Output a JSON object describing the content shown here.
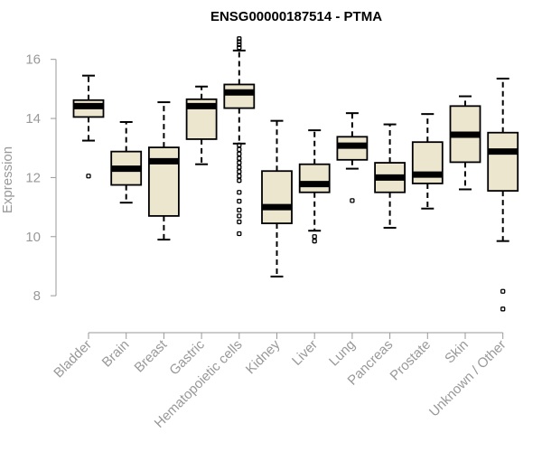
{
  "chart_data": {
    "type": "boxplot",
    "title": "ENSG00000187514 - PTMA",
    "xlabel": "",
    "ylabel": "Expression",
    "ylim": [
      7.3,
      17.0
    ],
    "yticks": [
      8,
      10,
      12,
      14,
      16
    ],
    "box_fill": "#ede6cf",
    "categories": [
      "Bladder",
      "Brain",
      "Breast",
      "Gastric",
      "Hematopoietic cells",
      "Kidney",
      "Liver",
      "Lung",
      "Pancreas",
      "Prostate",
      "Skin",
      "Unknown / Other"
    ],
    "boxes": [
      {
        "name": "Bladder",
        "min": 13.25,
        "q1": 14.05,
        "median": 14.42,
        "q3": 14.62,
        "max": 15.45,
        "outliers": [
          12.05
        ]
      },
      {
        "name": "Brain",
        "min": 11.15,
        "q1": 11.75,
        "median": 12.3,
        "q3": 12.88,
        "max": 13.88,
        "outliers": []
      },
      {
        "name": "Breast",
        "min": 9.9,
        "q1": 10.7,
        "median": 12.55,
        "q3": 13.02,
        "max": 14.55,
        "outliers": []
      },
      {
        "name": "Gastric",
        "min": 12.45,
        "q1": 13.3,
        "median": 14.42,
        "q3": 14.65,
        "max": 15.08,
        "outliers": []
      },
      {
        "name": "Hematopoietic cells",
        "min": 13.15,
        "q1": 14.35,
        "median": 14.88,
        "q3": 15.15,
        "max": 16.3,
        "outliers": [
          16.4,
          16.5,
          16.6,
          16.7,
          13.1,
          12.95,
          12.8,
          12.65,
          12.5,
          12.35,
          12.2,
          12.05,
          11.9,
          11.5,
          11.2,
          10.9,
          10.7,
          10.5,
          10.1
        ]
      },
      {
        "name": "Kidney",
        "min": 8.65,
        "q1": 10.45,
        "median": 11.0,
        "q3": 12.22,
        "max": 13.92,
        "outliers": []
      },
      {
        "name": "Liver",
        "min": 10.2,
        "q1": 11.5,
        "median": 11.78,
        "q3": 12.45,
        "max": 13.6,
        "outliers": [
          10.0,
          9.85
        ]
      },
      {
        "name": "Lung",
        "min": 12.3,
        "q1": 12.6,
        "median": 13.08,
        "q3": 13.38,
        "max": 14.18,
        "outliers": [
          11.22
        ]
      },
      {
        "name": "Pancreas",
        "min": 10.3,
        "q1": 11.5,
        "median": 12.0,
        "q3": 12.5,
        "max": 13.8,
        "outliers": []
      },
      {
        "name": "Prostate",
        "min": 10.95,
        "q1": 11.8,
        "median": 12.1,
        "q3": 13.2,
        "max": 14.15,
        "outliers": []
      },
      {
        "name": "Skin",
        "min": 11.6,
        "q1": 12.52,
        "median": 13.45,
        "q3": 14.42,
        "max": 14.75,
        "outliers": []
      },
      {
        "name": "Unknown / Other",
        "min": 9.85,
        "q1": 11.55,
        "median": 12.88,
        "q3": 13.52,
        "max": 15.35,
        "outliers": [
          8.15,
          7.55
        ]
      }
    ]
  }
}
